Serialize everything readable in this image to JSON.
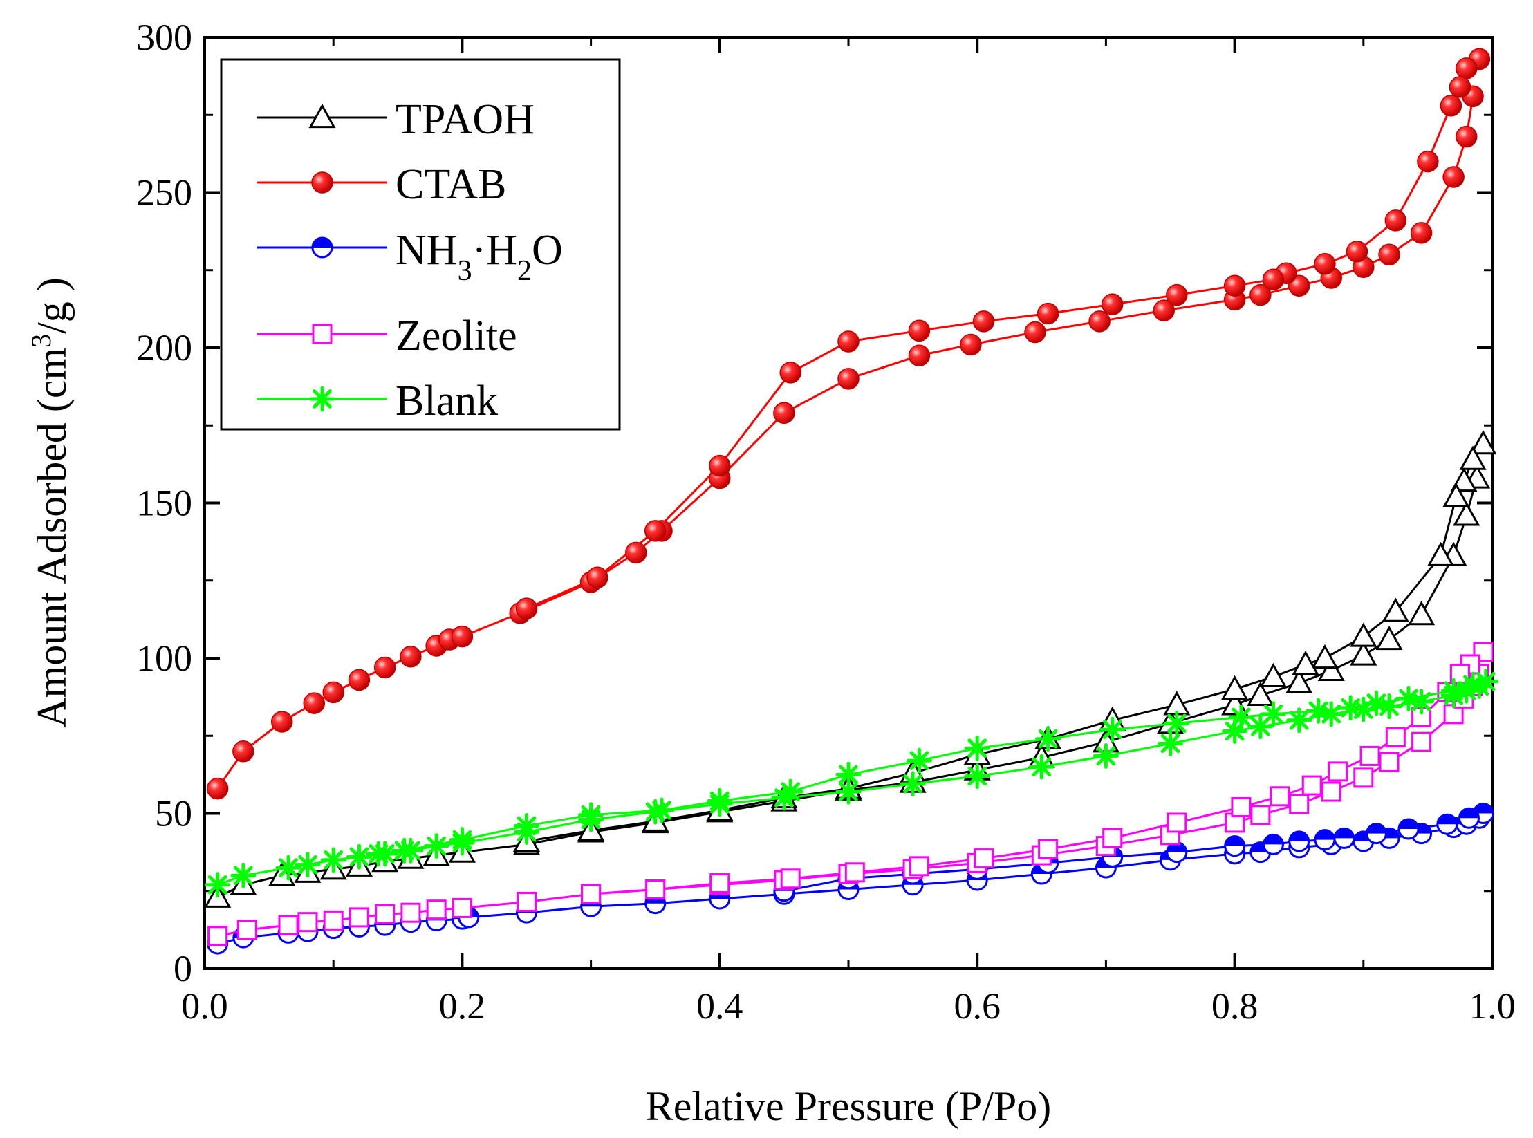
{
  "chart_data": {
    "type": "line",
    "title": "",
    "xlabel": "Relative Pressure (P/Po)",
    "ylabel": {
      "prefix": "Amount Adsorbed (cm",
      "sup": "3",
      "suffix": "/g )"
    },
    "xlim": [
      0.0,
      1.0
    ],
    "ylim": [
      0,
      300
    ],
    "xticks": [
      0.0,
      0.2,
      0.4,
      0.6,
      0.8,
      1.0
    ],
    "xtick_labels": [
      "0.0",
      "0.2",
      "0.4",
      "0.6",
      "0.8",
      "1.0"
    ],
    "yticks": [
      0,
      50,
      100,
      150,
      200,
      250,
      300
    ],
    "ytick_labels": [
      "0",
      "50",
      "100",
      "150",
      "200",
      "250",
      "300"
    ],
    "grid": false,
    "legend_position": "top-left",
    "series": [
      {
        "name": "TPAOH",
        "legend": "TPAOH",
        "color": "#000000",
        "marker": "triangle-open",
        "adsorption": [
          [
            0.01,
            23
          ],
          [
            0.03,
            27
          ],
          [
            0.06,
            30
          ],
          [
            0.08,
            31
          ],
          [
            0.1,
            32
          ],
          [
            0.12,
            33
          ],
          [
            0.14,
            34.5
          ],
          [
            0.16,
            35.5
          ],
          [
            0.18,
            36.5
          ],
          [
            0.2,
            37.5
          ],
          [
            0.25,
            40
          ],
          [
            0.3,
            44
          ],
          [
            0.35,
            47
          ],
          [
            0.4,
            50.5
          ],
          [
            0.45,
            54
          ],
          [
            0.5,
            57.5
          ],
          [
            0.55,
            60
          ],
          [
            0.6,
            64
          ],
          [
            0.65,
            68
          ],
          [
            0.7,
            73
          ],
          [
            0.75,
            79
          ],
          [
            0.8,
            85
          ],
          [
            0.82,
            88
          ],
          [
            0.85,
            92
          ],
          [
            0.875,
            96
          ],
          [
            0.9,
            101
          ],
          [
            0.92,
            106
          ],
          [
            0.945,
            114
          ],
          [
            0.97,
            133
          ],
          [
            0.98,
            146
          ],
          [
            0.988,
            158
          ]
        ],
        "desorption": [
          [
            0.993,
            169
          ],
          [
            0.985,
            164
          ],
          [
            0.978,
            157
          ],
          [
            0.972,
            152
          ],
          [
            0.96,
            133
          ],
          [
            0.925,
            115
          ],
          [
            0.9,
            107
          ],
          [
            0.87,
            100
          ],
          [
            0.855,
            98
          ],
          [
            0.83,
            94
          ],
          [
            0.8,
            90
          ],
          [
            0.755,
            85
          ],
          [
            0.705,
            80
          ],
          [
            0.655,
            74
          ],
          [
            0.6,
            69
          ],
          [
            0.55,
            63
          ],
          [
            0.5,
            58
          ],
          [
            0.45,
            55
          ],
          [
            0.4,
            51
          ],
          [
            0.35,
            47.5
          ],
          [
            0.3,
            44.5
          ],
          [
            0.25,
            41
          ]
        ]
      },
      {
        "name": "CTAB",
        "legend": "CTAB",
        "color": "#ff0000",
        "marker": "sphere",
        "adsorption": [
          [
            0.01,
            58
          ],
          [
            0.03,
            70
          ],
          [
            0.06,
            79.5
          ],
          [
            0.085,
            85.5
          ],
          [
            0.1,
            89
          ],
          [
            0.12,
            93
          ],
          [
            0.14,
            97
          ],
          [
            0.16,
            100.5
          ],
          [
            0.18,
            104
          ],
          [
            0.19,
            106
          ],
          [
            0.2,
            107
          ],
          [
            0.245,
            114.5
          ],
          [
            0.3,
            124.5
          ],
          [
            0.335,
            134
          ],
          [
            0.355,
            141
          ],
          [
            0.4,
            158
          ],
          [
            0.45,
            179
          ],
          [
            0.5,
            190
          ],
          [
            0.555,
            197.5
          ],
          [
            0.595,
            201
          ],
          [
            0.645,
            205
          ],
          [
            0.695,
            208.5
          ],
          [
            0.745,
            212
          ],
          [
            0.8,
            215.5
          ],
          [
            0.82,
            217
          ],
          [
            0.85,
            220
          ],
          [
            0.875,
            222.5
          ],
          [
            0.9,
            226
          ],
          [
            0.92,
            230
          ],
          [
            0.945,
            237
          ],
          [
            0.97,
            255
          ],
          [
            0.98,
            268
          ],
          [
            0.985,
            281
          ]
        ],
        "desorption": [
          [
            0.99,
            293
          ],
          [
            0.98,
            290
          ],
          [
            0.975,
            284
          ],
          [
            0.968,
            278
          ],
          [
            0.95,
            260
          ],
          [
            0.925,
            241
          ],
          [
            0.895,
            231
          ],
          [
            0.87,
            227
          ],
          [
            0.84,
            224
          ],
          [
            0.83,
            222
          ],
          [
            0.8,
            220
          ],
          [
            0.755,
            217
          ],
          [
            0.705,
            214
          ],
          [
            0.655,
            211
          ],
          [
            0.605,
            208.5
          ],
          [
            0.555,
            205.5
          ],
          [
            0.5,
            202
          ],
          [
            0.455,
            192
          ],
          [
            0.4,
            162
          ],
          [
            0.35,
            141
          ],
          [
            0.305,
            126
          ],
          [
            0.25,
            116
          ]
        ]
      },
      {
        "name": "NH3·H2O",
        "legend": {
          "a": "NH",
          "b": "3",
          "c": "·H",
          "d": "2",
          "e": "O"
        },
        "color": "#0000ff",
        "marker": "half-filled-circle",
        "adsorption": [
          [
            0.01,
            8
          ],
          [
            0.03,
            10
          ],
          [
            0.065,
            11.5
          ],
          [
            0.08,
            12
          ],
          [
            0.1,
            13
          ],
          [
            0.12,
            13.5
          ],
          [
            0.14,
            14
          ],
          [
            0.16,
            15
          ],
          [
            0.18,
            15.5
          ],
          [
            0.2,
            16
          ],
          [
            0.205,
            16.5
          ],
          [
            0.25,
            18
          ],
          [
            0.3,
            20
          ],
          [
            0.35,
            21
          ],
          [
            0.4,
            22.5
          ],
          [
            0.45,
            24
          ],
          [
            0.5,
            25.5
          ],
          [
            0.55,
            27
          ],
          [
            0.6,
            28.5
          ],
          [
            0.65,
            30.5
          ],
          [
            0.7,
            32.5
          ],
          [
            0.75,
            35
          ],
          [
            0.8,
            37
          ],
          [
            0.82,
            37.5
          ],
          [
            0.85,
            39
          ],
          [
            0.875,
            40
          ],
          [
            0.9,
            41
          ],
          [
            0.92,
            42
          ],
          [
            0.945,
            43.5
          ],
          [
            0.97,
            45.5
          ],
          [
            0.98,
            46.5
          ],
          [
            0.99,
            48.5
          ]
        ],
        "desorption": [
          [
            0.993,
            50
          ],
          [
            0.982,
            48.5
          ],
          [
            0.965,
            46.5
          ],
          [
            0.935,
            45
          ],
          [
            0.91,
            43.5
          ],
          [
            0.885,
            42
          ],
          [
            0.87,
            41.5
          ],
          [
            0.85,
            41
          ],
          [
            0.83,
            40
          ],
          [
            0.8,
            39.5
          ],
          [
            0.755,
            37.5
          ],
          [
            0.705,
            36
          ],
          [
            0.655,
            34
          ],
          [
            0.6,
            32
          ],
          [
            0.55,
            30.5
          ],
          [
            0.5,
            29
          ],
          [
            0.45,
            25
          ]
        ]
      },
      {
        "name": "Zeolite",
        "legend": "Zeolite",
        "color": "#ff00ff",
        "marker": "square-open",
        "adsorption": [
          [
            0.01,
            10.5
          ],
          [
            0.033,
            12.5
          ],
          [
            0.065,
            14
          ],
          [
            0.08,
            15
          ],
          [
            0.1,
            15.5
          ],
          [
            0.12,
            16.5
          ],
          [
            0.14,
            17.5
          ],
          [
            0.16,
            18
          ],
          [
            0.18,
            19
          ],
          [
            0.2,
            19.5
          ],
          [
            0.25,
            21.5
          ],
          [
            0.3,
            24
          ],
          [
            0.35,
            25.5
          ],
          [
            0.4,
            27
          ],
          [
            0.45,
            28.5
          ],
          [
            0.5,
            30.5
          ],
          [
            0.55,
            32
          ],
          [
            0.6,
            34
          ],
          [
            0.65,
            36.5
          ],
          [
            0.7,
            39.5
          ],
          [
            0.75,
            43
          ],
          [
            0.8,
            47
          ],
          [
            0.82,
            49.5
          ],
          [
            0.85,
            53
          ],
          [
            0.875,
            57
          ],
          [
            0.9,
            61.5
          ],
          [
            0.92,
            66.5
          ],
          [
            0.945,
            73
          ],
          [
            0.97,
            82
          ],
          [
            0.978,
            87
          ],
          [
            0.985,
            91
          ],
          [
            0.99,
            95
          ]
        ],
        "desorption": [
          [
            0.993,
            102
          ],
          [
            0.983,
            98
          ],
          [
            0.975,
            95
          ],
          [
            0.965,
            89
          ],
          [
            0.945,
            81
          ],
          [
            0.925,
            74.5
          ],
          [
            0.905,
            68.5
          ],
          [
            0.88,
            63.5
          ],
          [
            0.86,
            59
          ],
          [
            0.835,
            55.5
          ],
          [
            0.805,
            52
          ],
          [
            0.755,
            47
          ],
          [
            0.705,
            42
          ],
          [
            0.655,
            38.5
          ],
          [
            0.605,
            35.5
          ],
          [
            0.555,
            33
          ],
          [
            0.505,
            31
          ],
          [
            0.455,
            29
          ],
          [
            0.4,
            27.5
          ],
          [
            0.35,
            25.5
          ],
          [
            0.3,
            24
          ]
        ]
      },
      {
        "name": "Blank",
        "legend": "Blank",
        "color": "#00ff00",
        "marker": "asterisk",
        "adsorption": [
          [
            0.01,
            27
          ],
          [
            0.03,
            30
          ],
          [
            0.065,
            32.5
          ],
          [
            0.08,
            33.5
          ],
          [
            0.1,
            35
          ],
          [
            0.12,
            36
          ],
          [
            0.14,
            37
          ],
          [
            0.16,
            38
          ],
          [
            0.18,
            39.5
          ],
          [
            0.2,
            40.5
          ],
          [
            0.25,
            44
          ],
          [
            0.3,
            48
          ],
          [
            0.35,
            50.5
          ],
          [
            0.4,
            53
          ],
          [
            0.45,
            55
          ],
          [
            0.5,
            57
          ],
          [
            0.55,
            59.5
          ],
          [
            0.6,
            62
          ],
          [
            0.65,
            65
          ],
          [
            0.7,
            68.5
          ],
          [
            0.75,
            72.5
          ],
          [
            0.8,
            76.5
          ],
          [
            0.82,
            78
          ],
          [
            0.85,
            80
          ],
          [
            0.875,
            82
          ],
          [
            0.9,
            83.5
          ],
          [
            0.92,
            84.5
          ],
          [
            0.945,
            86
          ],
          [
            0.97,
            88
          ],
          [
            0.98,
            89.5
          ],
          [
            0.99,
            91
          ]
        ],
        "desorption": [
          [
            0.995,
            92.5
          ],
          [
            0.985,
            91.5
          ],
          [
            0.97,
            89.5
          ],
          [
            0.935,
            87
          ],
          [
            0.91,
            85.5
          ],
          [
            0.89,
            84
          ],
          [
            0.865,
            83
          ],
          [
            0.83,
            82
          ],
          [
            0.805,
            81
          ],
          [
            0.755,
            79
          ],
          [
            0.705,
            77
          ],
          [
            0.655,
            74
          ],
          [
            0.6,
            71
          ],
          [
            0.555,
            67
          ],
          [
            0.5,
            62.5
          ],
          [
            0.455,
            57
          ],
          [
            0.4,
            54
          ],
          [
            0.355,
            51
          ],
          [
            0.3,
            49.5
          ],
          [
            0.25,
            46
          ],
          [
            0.2,
            41.5
          ],
          [
            0.155,
            38
          ],
          [
            0.135,
            37
          ]
        ]
      }
    ]
  }
}
